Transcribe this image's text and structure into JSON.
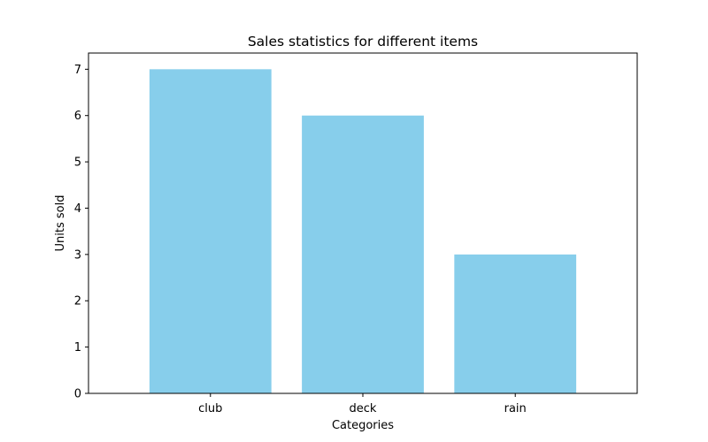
{
  "chart_data": {
    "type": "bar",
    "title": "Sales statistics for different items",
    "xlabel": "Categories",
    "ylabel": "Units sold",
    "categories": [
      "club",
      "deck",
      "rain"
    ],
    "values": [
      7,
      6,
      3
    ],
    "ylim": [
      0,
      7.35
    ],
    "yticks": [
      0,
      1,
      2,
      3,
      4,
      5,
      6,
      7
    ],
    "bar_color": "#87ceeb",
    "grid": false,
    "legend": "none"
  }
}
